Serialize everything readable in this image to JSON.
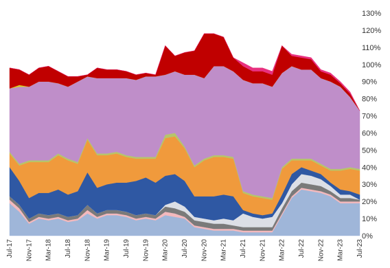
{
  "chart_data": {
    "type": "area",
    "stacked": true,
    "title": "",
    "xlabel": "",
    "ylabel": "",
    "ylim": [
      0,
      130
    ],
    "y_ticks": [
      "0%",
      "10%",
      "20%",
      "30%",
      "40%",
      "50%",
      "60%",
      "70%",
      "80%",
      "90%",
      "100%",
      "110%",
      "120%",
      "130%"
    ],
    "y_axis_side": "right",
    "grid": false,
    "legend": "none",
    "x_tick_labels": [
      "Jul-17",
      "Nov-17",
      "Mar-18",
      "Jul-18",
      "Nov-18",
      "Mar-19",
      "Jul-19",
      "Nov-19",
      "Mar-20",
      "Jul-20",
      "Nov-20",
      "Mar-21",
      "Jul-21",
      "Nov-21",
      "Mar-22",
      "Jul-22",
      "Nov-22",
      "Mar-23",
      "Jul-23"
    ],
    "x": [
      "Jul-17",
      "Sep-17",
      "Nov-17",
      "Jan-18",
      "Mar-18",
      "May-18",
      "Jul-18",
      "Sep-18",
      "Nov-18",
      "Jan-19",
      "Mar-19",
      "May-19",
      "Jul-19",
      "Sep-19",
      "Nov-19",
      "Jan-20",
      "Mar-20",
      "May-20",
      "Jul-20",
      "Sep-20",
      "Nov-20",
      "Jan-21",
      "Mar-21",
      "May-21",
      "Jul-21",
      "Sep-21",
      "Nov-21",
      "Jan-22",
      "Mar-22",
      "May-22",
      "Jul-22",
      "Sep-22",
      "Nov-22",
      "Jan-23",
      "Mar-23",
      "May-23",
      "Jul-23"
    ],
    "series": [
      {
        "color": "#9fb6d9",
        "values": [
          19,
          14,
          7,
          10,
          9,
          10,
          8,
          9,
          13,
          10,
          12,
          12,
          11,
          9,
          10,
          9,
          12,
          11,
          10,
          5,
          4,
          3,
          3,
          3,
          2,
          2,
          2,
          2,
          12,
          22,
          27,
          26,
          25,
          23,
          19,
          19,
          19
        ]
      },
      {
        "color": "#f4b9bd",
        "values": [
          2,
          2,
          1,
          1,
          1,
          1,
          1,
          1,
          2,
          1,
          1,
          1,
          1,
          1,
          1,
          1,
          2,
          2,
          1,
          1,
          1,
          1,
          1,
          1,
          1,
          1,
          1,
          1,
          1,
          1,
          1,
          1,
          1,
          1,
          1,
          1,
          1
        ]
      },
      {
        "color": "#7a7a7a",
        "values": [
          2,
          2,
          2,
          2,
          2,
          2,
          2,
          2,
          3,
          2,
          2,
          2,
          2,
          2,
          2,
          2,
          3,
          3,
          3,
          3,
          3,
          3,
          3,
          2,
          2,
          2,
          2,
          2,
          3,
          3,
          3,
          3,
          3,
          2,
          2,
          2,
          1
        ]
      },
      {
        "color": "#dcdfe6",
        "values": [
          0,
          0,
          0,
          0,
          0,
          0,
          0,
          0,
          0,
          0,
          0,
          0,
          0,
          0,
          0,
          0,
          1,
          4,
          3,
          2,
          2,
          2,
          3,
          3,
          8,
          6,
          5,
          6,
          3,
          4,
          5,
          5,
          4,
          3,
          2,
          2,
          0
        ]
      },
      {
        "color": "#2f58a3",
        "values": [
          17,
          14,
          12,
          12,
          13,
          14,
          13,
          14,
          19,
          15,
          15,
          16,
          17,
          20,
          21,
          19,
          17,
          16,
          15,
          12,
          13,
          14,
          14,
          14,
          2,
          2,
          2,
          2,
          5,
          6,
          4,
          3,
          3,
          2,
          3,
          2,
          3
        ]
      },
      {
        "color": "#f09a3c",
        "values": [
          8,
          9,
          21,
          18,
          18,
          20,
          20,
          16,
          19,
          19,
          17,
          17,
          15,
          13,
          11,
          14,
          22,
          22,
          19,
          17,
          21,
          23,
          22,
          22,
          10,
          10,
          10,
          8,
          15,
          8,
          4,
          6,
          5,
          7,
          11,
          13,
          14
        ]
      },
      {
        "color": "#b6c56a",
        "values": [
          1,
          1,
          1,
          1,
          1,
          1,
          1,
          1,
          1,
          1,
          1,
          1,
          1,
          1,
          1,
          1,
          2,
          2,
          1,
          1,
          1,
          1,
          1,
          1,
          1,
          1,
          1,
          1,
          1,
          1,
          1,
          1,
          1,
          1,
          1,
          1,
          1
        ]
      },
      {
        "color": "#bf8ec9",
        "values": [
          37,
          45,
          43,
          46,
          46,
          41,
          42,
          47,
          36,
          44,
          44,
          43,
          45,
          45,
          47,
          47,
          35,
          36,
          42,
          53,
          47,
          52,
          52,
          50,
          65,
          65,
          66,
          65,
          55,
          54,
          52,
          52,
          50,
          51,
          48,
          41,
          34
        ]
      },
      {
        "color": "#d8d020",
        "values": [
          0,
          1,
          0,
          0,
          0,
          0,
          0,
          0,
          0,
          0,
          0,
          0,
          0,
          0,
          0,
          0,
          0,
          0,
          0,
          0,
          0,
          0,
          0,
          0,
          0,
          0,
          0,
          0,
          0,
          0,
          0,
          0,
          0,
          0,
          0,
          0,
          0
        ]
      },
      {
        "color": "#c00000",
        "values": [
          12,
          9,
          7,
          8,
          9,
          7,
          6,
          3,
          1,
          6,
          5,
          5,
          4,
          3,
          2,
          1,
          17,
          9,
          13,
          14,
          26,
          19,
          17,
          8,
          8,
          7,
          7,
          7,
          16,
          6,
          7,
          6,
          4,
          4,
          2,
          2,
          0
        ]
      },
      {
        "color": "#e8307f",
        "values": [
          0,
          0,
          0,
          0,
          0,
          0,
          0,
          0,
          0,
          0,
          0,
          0,
          0,
          0,
          0,
          0,
          0,
          0,
          0,
          0,
          0,
          0,
          0,
          0,
          2,
          2,
          2,
          2,
          0,
          1,
          1,
          1,
          1,
          1,
          1,
          1,
          0
        ]
      }
    ]
  }
}
